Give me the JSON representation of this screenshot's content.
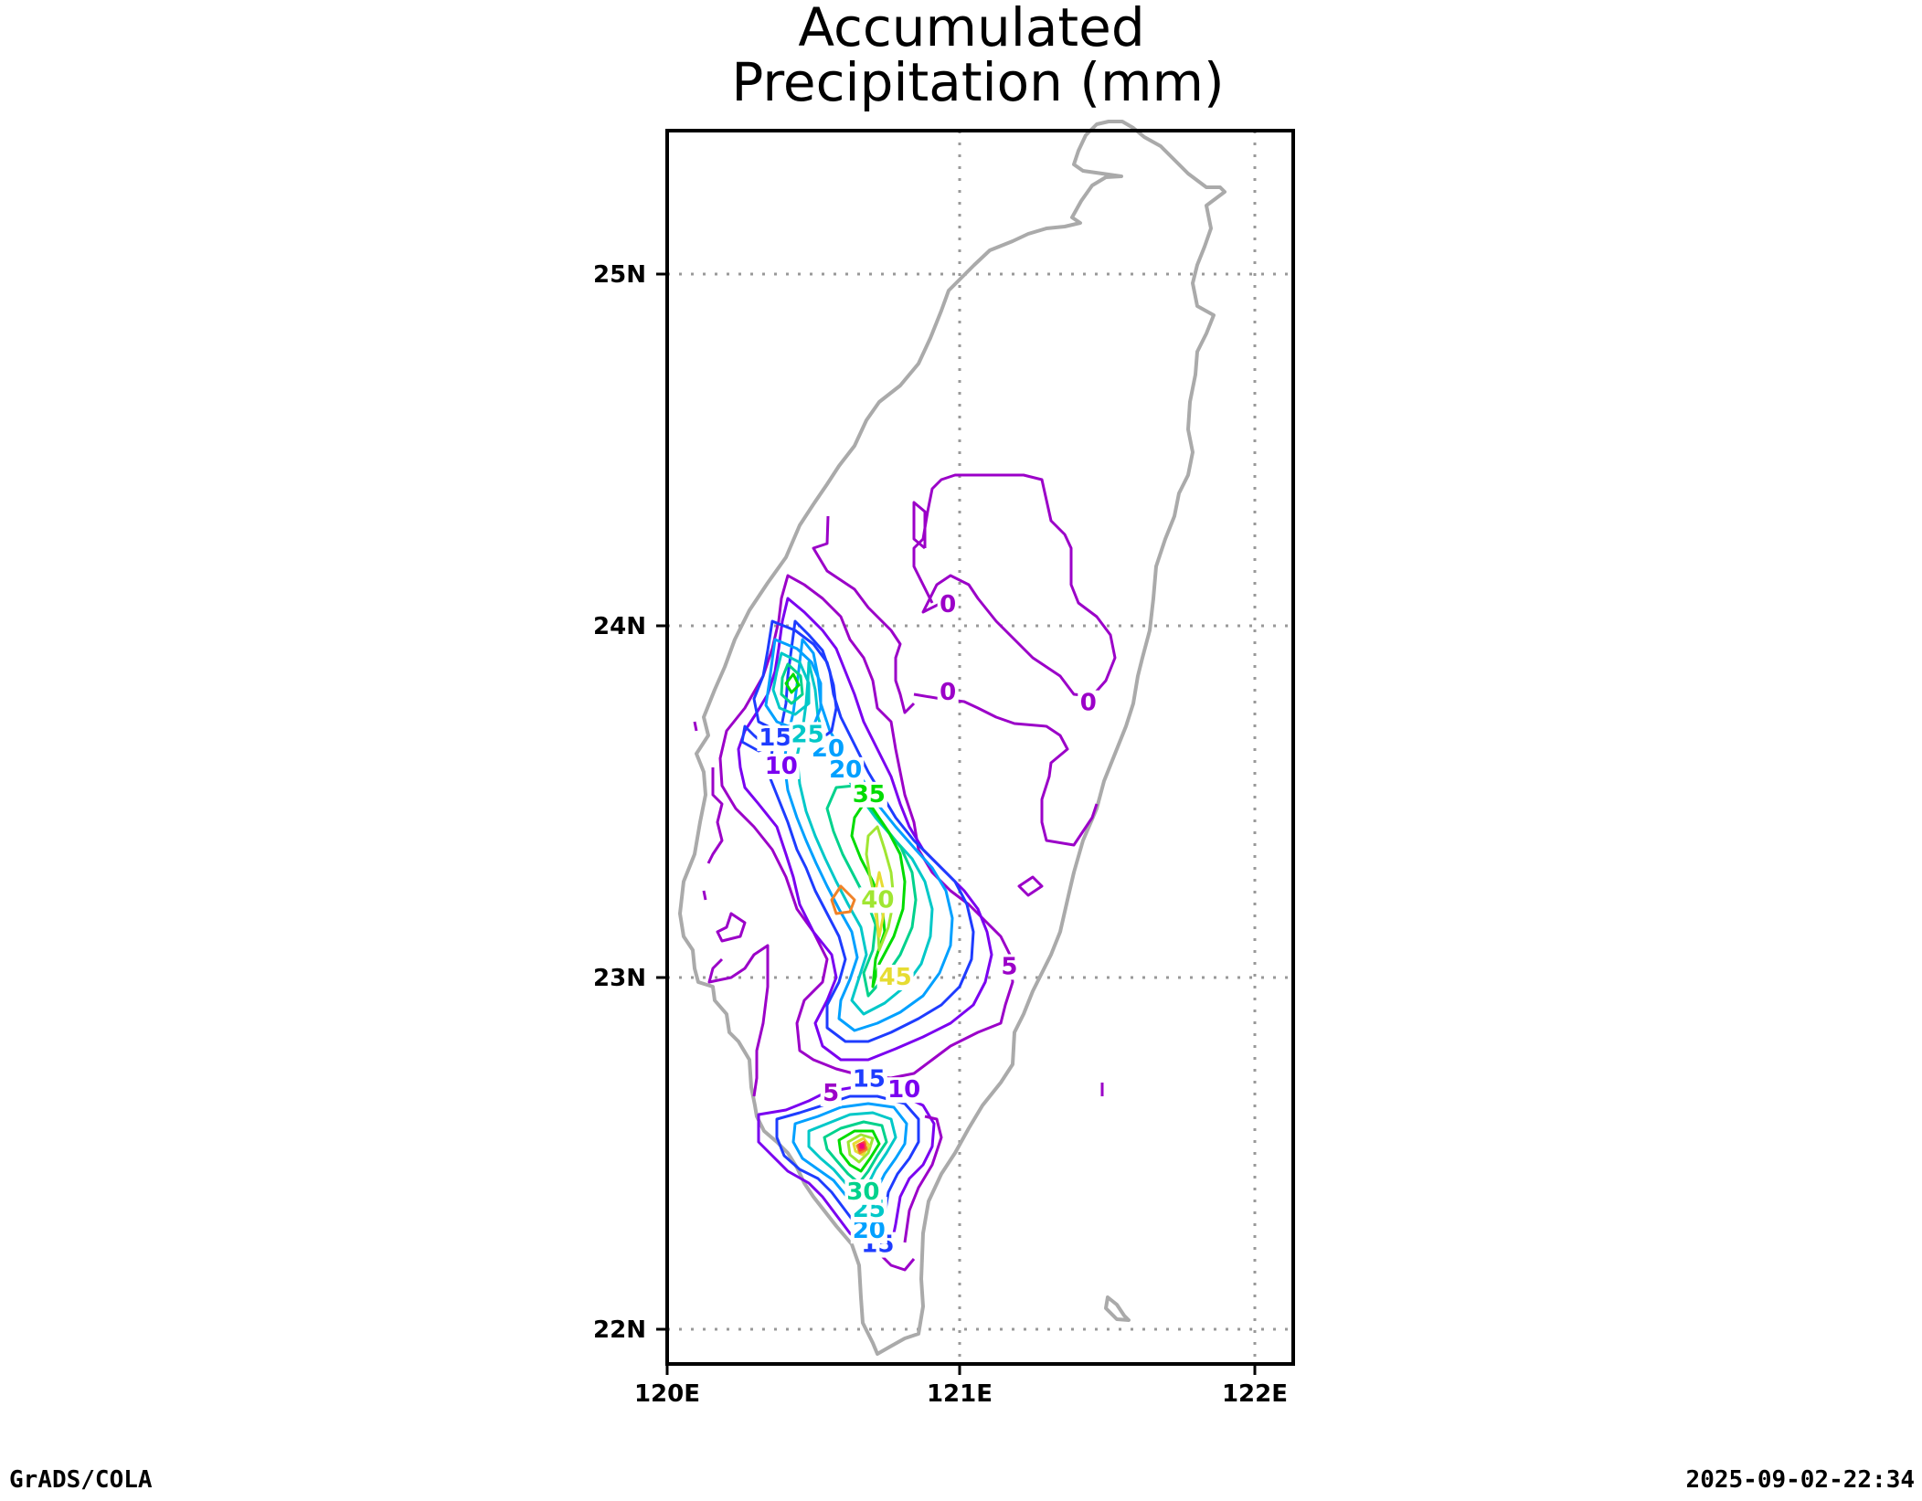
{
  "title": {
    "line1": "Accumulated",
    "line2": "Precipitation (mm)"
  },
  "axes": {
    "x_ticks": [
      "120E",
      "121E",
      "122E"
    ],
    "y_ticks": [
      "25N",
      "24N",
      "23N",
      "22N"
    ],
    "x_range_deg": [
      120.0,
      122.13
    ],
    "y_range_deg": [
      21.9,
      25.42
    ],
    "grid": "dotted"
  },
  "footer": {
    "left": "GrADS/COLA",
    "right": "2025-09-02-22:34"
  },
  "colors": {
    "coastline": "#aaaaaa",
    "frame": "#000000",
    "grid": "#999999",
    "contour_0_5": "#9b00c8",
    "contour_10": "#7a00f0",
    "contour_15": "#1e3cff",
    "contour_20": "#00a0ff",
    "contour_25": "#00c8c8",
    "contour_30": "#00d28c",
    "contour_35": "#00dc00",
    "contour_40": "#a0e632",
    "contour_45": "#e6dc32",
    "contour_50": "#f08228",
    "contour_55": "#fa3c3c",
    "contour_60": "#f00082"
  },
  "contour_labels": [
    {
      "text": "0",
      "lon": 120.96,
      "lat": 24.06,
      "level": 0
    },
    {
      "text": "0",
      "lon": 120.96,
      "lat": 23.81,
      "level": 0
    },
    {
      "text": "0",
      "lon": 121.44,
      "lat": 23.78,
      "level": 0
    },
    {
      "text": "5",
      "lon": 121.17,
      "lat": 23.03,
      "level": 5
    },
    {
      "text": "5",
      "lon": 120.56,
      "lat": 22.67,
      "level": 5
    },
    {
      "text": "10",
      "lon": 120.39,
      "lat": 23.6,
      "level": 10
    },
    {
      "text": "10",
      "lon": 120.81,
      "lat": 22.68,
      "level": 10
    },
    {
      "text": "15",
      "lon": 120.37,
      "lat": 23.68,
      "level": 15
    },
    {
      "text": "15",
      "lon": 120.69,
      "lat": 22.71,
      "level": 15
    },
    {
      "text": "15",
      "lon": 120.72,
      "lat": 22.24,
      "level": 15
    },
    {
      "text": "20",
      "lon": 120.55,
      "lat": 23.65,
      "level": 20
    },
    {
      "text": "20",
      "lon": 120.61,
      "lat": 23.59,
      "level": 20
    },
    {
      "text": "20",
      "lon": 120.69,
      "lat": 22.28,
      "level": 20
    },
    {
      "text": "25",
      "lon": 120.48,
      "lat": 23.69,
      "level": 25
    },
    {
      "text": "25",
      "lon": 120.69,
      "lat": 22.34,
      "level": 25
    },
    {
      "text": "35",
      "lon": 120.69,
      "lat": 23.52,
      "level": 35
    },
    {
      "text": "30",
      "lon": 120.67,
      "lat": 22.39,
      "level": 30
    },
    {
      "text": "40",
      "lon": 120.72,
      "lat": 23.22,
      "level": 40
    },
    {
      "text": "45",
      "lon": 120.78,
      "lat": 23.0,
      "level": 45
    }
  ]
}
